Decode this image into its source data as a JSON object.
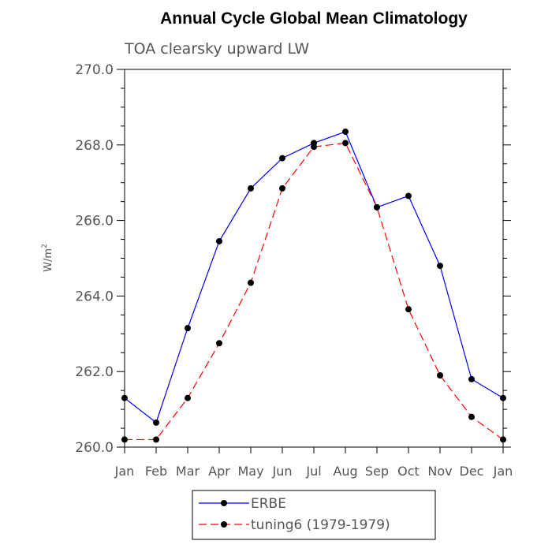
{
  "chart_data": {
    "type": "line",
    "title": "Annual Cycle Global Mean Climatology",
    "subtitle": "TOA clearsky upward LW",
    "ylabel": "W/m",
    "ylabel_sup": "2",
    "ylim": [
      260.0,
      270.0
    ],
    "yticks": [
      "260.0",
      "262.0",
      "264.0",
      "266.0",
      "268.0",
      "270.0"
    ],
    "ytick_values": [
      260,
      262,
      264,
      266,
      268,
      270
    ],
    "categories": [
      "Jan",
      "Feb",
      "Mar",
      "Apr",
      "May",
      "Jun",
      "Jul",
      "Aug",
      "Sep",
      "Oct",
      "Nov",
      "Dec",
      "Jan"
    ],
    "grid": false,
    "legend_position": "bottom",
    "series": [
      {
        "name": "ERBE",
        "color": "#0000ff",
        "dash": "solid",
        "values": [
          261.3,
          260.65,
          263.15,
          265.45,
          266.85,
          267.65,
          268.05,
          268.35,
          266.35,
          266.65,
          264.8,
          261.8,
          261.3
        ]
      },
      {
        "name": "tuning6 (1979-1979)",
        "color": "#ff0000",
        "dash": "dashed",
        "values": [
          260.2,
          260.2,
          261.3,
          262.75,
          264.35,
          266.85,
          267.95,
          268.05,
          266.35,
          263.65,
          261.9,
          260.8,
          260.2
        ]
      }
    ]
  }
}
